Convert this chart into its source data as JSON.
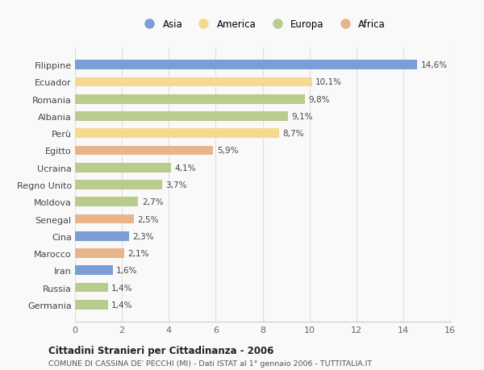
{
  "countries": [
    "Filippine",
    "Ecuador",
    "Romania",
    "Albania",
    "Perù",
    "Egitto",
    "Ucraina",
    "Regno Unito",
    "Moldova",
    "Senegal",
    "Cina",
    "Marocco",
    "Iran",
    "Russia",
    "Germania"
  ],
  "values": [
    14.6,
    10.1,
    9.8,
    9.1,
    8.7,
    5.9,
    4.1,
    3.7,
    2.7,
    2.5,
    2.3,
    2.1,
    1.6,
    1.4,
    1.4
  ],
  "labels": [
    "14,6%",
    "10,1%",
    "9,8%",
    "9,1%",
    "8,7%",
    "5,9%",
    "4,1%",
    "3,7%",
    "2,7%",
    "2,5%",
    "2,3%",
    "2,1%",
    "1,6%",
    "1,4%",
    "1,4%"
  ],
  "continents": [
    "Asia",
    "America",
    "Europa",
    "Europa",
    "America",
    "Africa",
    "Europa",
    "Europa",
    "Europa",
    "Africa",
    "Asia",
    "Africa",
    "Asia",
    "Europa",
    "Europa"
  ],
  "colors": {
    "Asia": "#7b9fd4",
    "America": "#f5d990",
    "Europa": "#b8cc8e",
    "Africa": "#e8b48a"
  },
  "title_main": "Cittadini Stranieri per Cittadinanza - 2006",
  "title_sub": "COMUNE DI CASSINA DE' PECCHI (MI) - Dati ISTAT al 1° gennaio 2006 - TUTTITALIA.IT",
  "xlim": [
    0,
    16
  ],
  "xticks": [
    0,
    2,
    4,
    6,
    8,
    10,
    12,
    14,
    16
  ],
  "background_color": "#f9f9f9",
  "grid_color": "#e0e0e0",
  "bar_height": 0.55
}
